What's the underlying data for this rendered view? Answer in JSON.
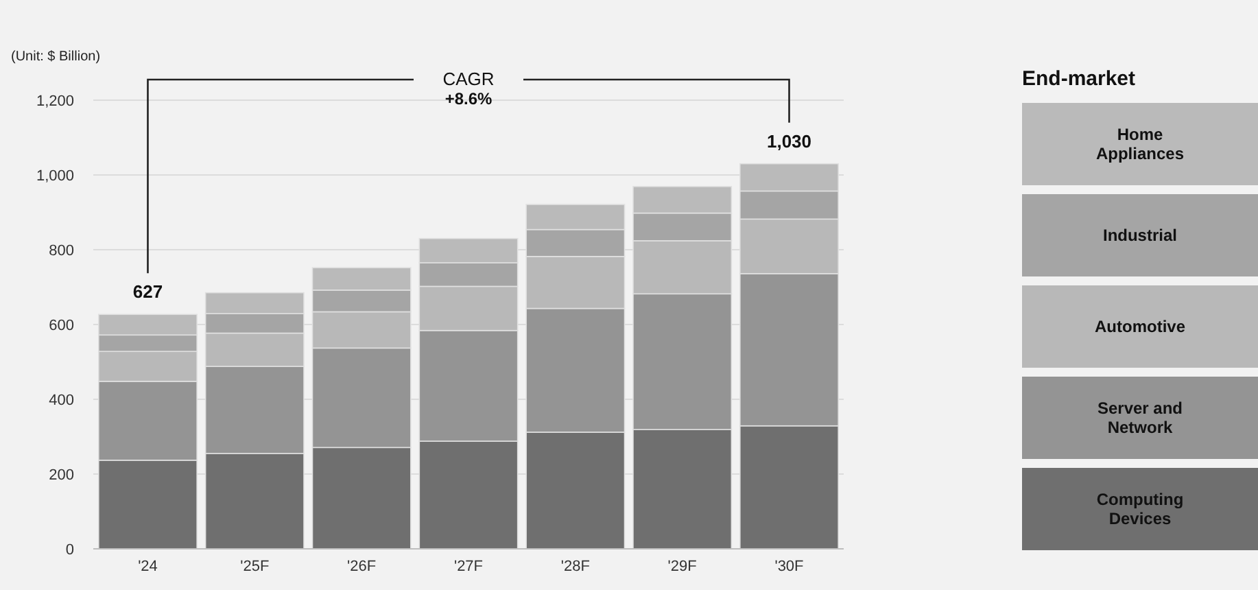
{
  "chart_data": {
    "type": "bar",
    "stacked": true,
    "categories": [
      "'24",
      "'25F",
      "'26F",
      "'27F",
      "'28F",
      "'29F",
      "'30F"
    ],
    "series": [
      {
        "name": "Computing Devices",
        "color": "#6f6f6f",
        "values": [
          237,
          255,
          271,
          288,
          312,
          319,
          329
        ]
      },
      {
        "name": "Server and Network",
        "color": "#949494",
        "values": [
          211,
          233,
          266,
          296,
          331,
          363,
          407
        ]
      },
      {
        "name": "Automotive",
        "color": "#b8b8b8",
        "values": [
          80,
          89,
          97,
          118,
          139,
          142,
          146
        ]
      },
      {
        "name": "Industrial",
        "color": "#a5a5a5",
        "values": [
          44,
          52,
          58,
          63,
          72,
          74,
          75
        ]
      },
      {
        "name": "Home Appliances",
        "color": "#bababa",
        "values": [
          55,
          56,
          60,
          65,
          67,
          71,
          73
        ]
      }
    ],
    "totals": [
      "627",
      null,
      null,
      null,
      null,
      null,
      "1,030"
    ],
    "ylim": [
      0,
      1200
    ],
    "yticks": [
      0,
      {
        "value": 200,
        "label": "200"
      },
      {
        "value": 400,
        "label": "400"
      },
      {
        "value": 600,
        "label": "600"
      },
      {
        "value": 800,
        "label": "800"
      },
      {
        "value": 1000,
        "label": "1,000"
      },
      {
        "value": 1200,
        "label": "1,200"
      }
    ],
    "grid": "y",
    "legend": "right",
    "legend_title": "End-market",
    "annotations": [
      "(Unit: $ Billion)",
      "CAGR",
      "+8.6%"
    ]
  }
}
